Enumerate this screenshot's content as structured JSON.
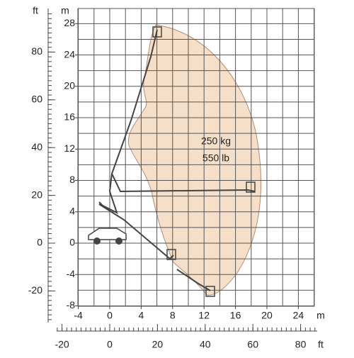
{
  "labels": {
    "left_outer_unit": "ft",
    "left_inner_unit": "m",
    "bottom_inner_unit": "m",
    "bottom_outer_unit": "ft"
  },
  "axes": {
    "m_y_ticks": [
      28,
      24,
      20,
      16,
      12,
      8,
      4,
      0,
      -4,
      -8
    ],
    "ft_y_ticks": [
      80,
      60,
      40,
      20,
      0,
      -20
    ],
    "m_x_ticks": [
      -4,
      0,
      4,
      8,
      12,
      16,
      20,
      24
    ],
    "ft_x_ticks": [
      -20,
      0,
      20,
      40,
      60,
      80
    ]
  },
  "capacity": {
    "load_kg": "250 kg",
    "load_lb": "550 lb"
  }
}
